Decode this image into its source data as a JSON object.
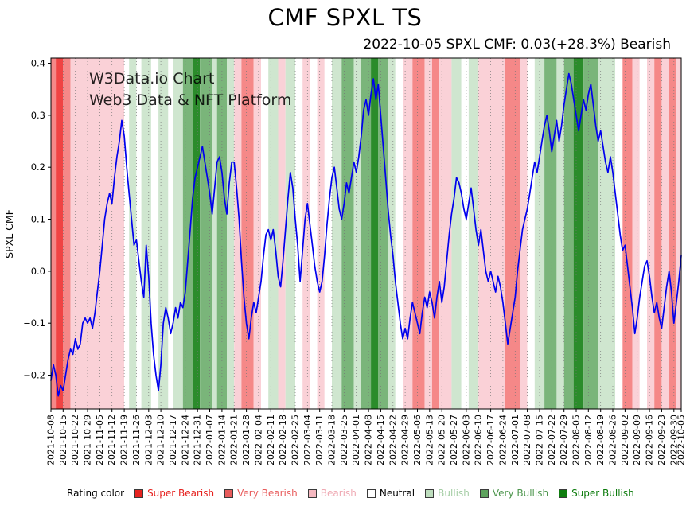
{
  "header": {
    "title": "CMF SPXL TS",
    "subtitle": "2022-10-05 SPXL CMF: 0.03(+28.3%) Bearish"
  },
  "watermark": {
    "line1": "W3Data.io Chart",
    "line2": "Web3 Data & NFT Platform",
    "color1": "#b5b5b5",
    "color2": "#9dbf9d"
  },
  "legend": {
    "title": "Rating color",
    "items": [
      {
        "key": "super-bearish",
        "label": "Super Bearish",
        "swatch": "#e62320",
        "text": "#e62320"
      },
      {
        "key": "very-bearish",
        "label": "Very Bearish",
        "swatch": "#e85b5b",
        "text": "#e85b5b"
      },
      {
        "key": "bearish",
        "label": "Bearish",
        "swatch": "#f5b8c0",
        "text": "#efa9b3"
      },
      {
        "key": "neutral",
        "label": "Neutral",
        "swatch": "#ffffff",
        "text": "#000000"
      },
      {
        "key": "bullish",
        "label": "Bullish",
        "swatch": "#bedebe",
        "text": "#a4cda4"
      },
      {
        "key": "very-bullish",
        "label": "Very Bullish",
        "swatch": "#5ea35e",
        "text": "#4e964e"
      },
      {
        "key": "super-bullish",
        "label": "Super Bullish",
        "swatch": "#0f7d0f",
        "text": "#0a7a0a"
      }
    ]
  },
  "chart_data": {
    "type": "line",
    "title": "CMF SPXL TS",
    "subtitle": "2022-10-05 SPXL CMF: 0.03(+28.3%) Bearish",
    "xlabel": "",
    "ylabel": "SPXL CMF",
    "ylim": [
      -0.265,
      0.41
    ],
    "xlim": [
      0,
      258
    ],
    "grid": "weekly dotted vertical lines",
    "legend_position": "bottom",
    "line_color": "#0000ee",
    "yticks": [
      -0.2,
      -0.1,
      0.0,
      0.1,
      0.2,
      0.3,
      0.4
    ],
    "ytick_labels": [
      "−0.2",
      "−0.1",
      "0.0",
      "0.1",
      "0.2",
      "0.3",
      "0.4"
    ],
    "xtick_positions": [
      0,
      5,
      10,
      15,
      20,
      25,
      30,
      35,
      40,
      45,
      50,
      55,
      60,
      65,
      70,
      75,
      80,
      85,
      90,
      95,
      100,
      105,
      110,
      115,
      120,
      125,
      130,
      135,
      140,
      145,
      150,
      155,
      160,
      165,
      170,
      175,
      180,
      185,
      190,
      195,
      200,
      205,
      210,
      215,
      220,
      225,
      230,
      235,
      240,
      245,
      250,
      255,
      258
    ],
    "xtick_labels": [
      "2021-10-08",
      "2021-10-15",
      "2021-10-22",
      "2021-10-29",
      "2021-11-05",
      "2021-11-12",
      "2021-11-19",
      "2021-11-26",
      "2021-12-03",
      "2021-12-10",
      "2021-12-17",
      "2021-12-24",
      "2021-12-31",
      "2022-01-07",
      "2022-01-14",
      "2022-01-21",
      "2022-01-28",
      "2022-02-04",
      "2022-02-11",
      "2022-02-18",
      "2022-02-25",
      "2022-03-04",
      "2022-03-11",
      "2022-03-18",
      "2022-03-25",
      "2022-04-01",
      "2022-04-08",
      "2022-04-15",
      "2022-04-22",
      "2022-04-29",
      "2022-05-06",
      "2022-05-13",
      "2022-05-20",
      "2022-05-27",
      "2022-06-03",
      "2022-06-10",
      "2022-06-17",
      "2022-06-24",
      "2022-07-01",
      "2022-07-08",
      "2022-07-15",
      "2022-07-22",
      "2022-07-29",
      "2022-08-05",
      "2022-08-12",
      "2022-08-19",
      "2022-08-26",
      "2022-09-02",
      "2022-09-09",
      "2022-09-16",
      "2022-09-23",
      "2022-09-30",
      "2022-10-05"
    ],
    "series": [
      {
        "name": "SPXL CMF",
        "x_unit": "trading-day index from 2021-10-08 (weekly ticks every 5 days)",
        "last_value": 0.03,
        "values": [
          -0.21,
          -0.18,
          -0.2,
          -0.24,
          -0.22,
          -0.23,
          -0.2,
          -0.17,
          -0.15,
          -0.16,
          -0.13,
          -0.15,
          -0.14,
          -0.1,
          -0.09,
          -0.1,
          -0.09,
          -0.11,
          -0.08,
          -0.04,
          0.0,
          0.05,
          0.1,
          0.13,
          0.15,
          0.13,
          0.18,
          0.22,
          0.25,
          0.29,
          0.26,
          0.2,
          0.15,
          0.1,
          0.05,
          0.06,
          0.02,
          -0.02,
          -0.05,
          0.05,
          -0.01,
          -0.1,
          -0.16,
          -0.2,
          -0.23,
          -0.18,
          -0.1,
          -0.07,
          -0.09,
          -0.12,
          -0.1,
          -0.07,
          -0.09,
          -0.06,
          -0.07,
          -0.04,
          0.02,
          0.08,
          0.14,
          0.18,
          0.2,
          0.22,
          0.24,
          0.21,
          0.18,
          0.15,
          0.11,
          0.16,
          0.21,
          0.22,
          0.19,
          0.14,
          0.11,
          0.17,
          0.21,
          0.21,
          0.16,
          0.1,
          0.02,
          -0.05,
          -0.1,
          -0.13,
          -0.09,
          -0.06,
          -0.08,
          -0.05,
          -0.02,
          0.03,
          0.07,
          0.08,
          0.06,
          0.08,
          0.04,
          -0.01,
          -0.03,
          0.02,
          0.08,
          0.14,
          0.19,
          0.16,
          0.1,
          0.05,
          -0.02,
          0.04,
          0.1,
          0.13,
          0.09,
          0.05,
          0.01,
          -0.02,
          -0.04,
          -0.02,
          0.03,
          0.09,
          0.14,
          0.18,
          0.2,
          0.16,
          0.12,
          0.1,
          0.13,
          0.17,
          0.15,
          0.18,
          0.21,
          0.19,
          0.22,
          0.26,
          0.31,
          0.33,
          0.3,
          0.34,
          0.37,
          0.33,
          0.36,
          0.3,
          0.24,
          0.18,
          0.12,
          0.07,
          0.03,
          -0.02,
          -0.06,
          -0.1,
          -0.13,
          -0.11,
          -0.13,
          -0.09,
          -0.06,
          -0.08,
          -0.1,
          -0.12,
          -0.08,
          -0.05,
          -0.07,
          -0.04,
          -0.06,
          -0.09,
          -0.05,
          -0.02,
          -0.06,
          -0.03,
          0.02,
          0.07,
          0.11,
          0.14,
          0.18,
          0.17,
          0.15,
          0.12,
          0.1,
          0.13,
          0.16,
          0.12,
          0.08,
          0.05,
          0.08,
          0.04,
          0.0,
          -0.02,
          0.0,
          -0.02,
          -0.04,
          -0.01,
          -0.03,
          -0.06,
          -0.1,
          -0.14,
          -0.11,
          -0.08,
          -0.05,
          0.0,
          0.04,
          0.08,
          0.1,
          0.12,
          0.15,
          0.18,
          0.21,
          0.19,
          0.22,
          0.25,
          0.28,
          0.3,
          0.27,
          0.23,
          0.26,
          0.29,
          0.25,
          0.28,
          0.32,
          0.35,
          0.38,
          0.36,
          0.33,
          0.3,
          0.27,
          0.3,
          0.33,
          0.31,
          0.34,
          0.36,
          0.32,
          0.28,
          0.25,
          0.27,
          0.24,
          0.21,
          0.19,
          0.22,
          0.19,
          0.15,
          0.11,
          0.07,
          0.04,
          0.05,
          0.01,
          -0.03,
          -0.07,
          -0.12,
          -0.09,
          -0.05,
          -0.02,
          0.01,
          0.02,
          -0.01,
          -0.05,
          -0.08,
          -0.06,
          -0.09,
          -0.11,
          -0.07,
          -0.03,
          0.0,
          -0.04,
          -0.1,
          -0.06,
          -0.02,
          0.03
        ]
      }
    ],
    "band_colors": {
      "super_bearish": "#f04343",
      "very_bearish": "#f58888",
      "bearish": "#fad1d7",
      "neutral": "#ffffff",
      "bullish": "#cfe6cf",
      "very_bullish": "#7ab57a",
      "super_bullish": "#2b8c2b"
    },
    "bands": [
      [
        0,
        2,
        "very_bearish"
      ],
      [
        2,
        5,
        "super_bearish"
      ],
      [
        5,
        8,
        "very_bearish"
      ],
      [
        8,
        30,
        "bearish"
      ],
      [
        30,
        32,
        "neutral"
      ],
      [
        32,
        35,
        "bullish"
      ],
      [
        35,
        37,
        "neutral"
      ],
      [
        37,
        41,
        "bullish"
      ],
      [
        41,
        44,
        "neutral"
      ],
      [
        44,
        48,
        "bullish"
      ],
      [
        48,
        50,
        "neutral"
      ],
      [
        50,
        54,
        "bullish"
      ],
      [
        54,
        58,
        "very_bullish"
      ],
      [
        58,
        61,
        "super_bullish"
      ],
      [
        61,
        66,
        "very_bullish"
      ],
      [
        66,
        68,
        "bullish"
      ],
      [
        68,
        72,
        "very_bullish"
      ],
      [
        72,
        75,
        "bullish"
      ],
      [
        75,
        78,
        "bearish"
      ],
      [
        78,
        83,
        "very_bearish"
      ],
      [
        83,
        86,
        "bearish"
      ],
      [
        86,
        89,
        "neutral"
      ],
      [
        89,
        93,
        "bullish"
      ],
      [
        93,
        96,
        "bearish"
      ],
      [
        96,
        100,
        "bullish"
      ],
      [
        100,
        103,
        "neutral"
      ],
      [
        103,
        106,
        "bearish"
      ],
      [
        106,
        109,
        "neutral"
      ],
      [
        109,
        112,
        "bearish"
      ],
      [
        112,
        115,
        "neutral"
      ],
      [
        115,
        119,
        "bullish"
      ],
      [
        119,
        124,
        "very_bullish"
      ],
      [
        124,
        127,
        "bullish"
      ],
      [
        127,
        131,
        "very_bullish"
      ],
      [
        131,
        134,
        "super_bullish"
      ],
      [
        134,
        138,
        "very_bullish"
      ],
      [
        138,
        141,
        "bullish"
      ],
      [
        141,
        144,
        "neutral"
      ],
      [
        144,
        148,
        "bearish"
      ],
      [
        148,
        153,
        "very_bearish"
      ],
      [
        153,
        156,
        "bearish"
      ],
      [
        156,
        159,
        "very_bearish"
      ],
      [
        159,
        164,
        "bearish"
      ],
      [
        164,
        168,
        "bullish"
      ],
      [
        168,
        171,
        "neutral"
      ],
      [
        171,
        175,
        "bullish"
      ],
      [
        175,
        186,
        "bearish"
      ],
      [
        186,
        192,
        "very_bearish"
      ],
      [
        192,
        195,
        "bearish"
      ],
      [
        195,
        198,
        "neutral"
      ],
      [
        198,
        202,
        "bullish"
      ],
      [
        202,
        207,
        "very_bullish"
      ],
      [
        207,
        210,
        "bullish"
      ],
      [
        210,
        214,
        "very_bullish"
      ],
      [
        214,
        218,
        "super_bullish"
      ],
      [
        218,
        224,
        "very_bullish"
      ],
      [
        224,
        231,
        "bullish"
      ],
      [
        231,
        234,
        "neutral"
      ],
      [
        234,
        238,
        "very_bearish"
      ],
      [
        238,
        241,
        "bearish"
      ],
      [
        241,
        244,
        "neutral"
      ],
      [
        244,
        247,
        "bearish"
      ],
      [
        247,
        250,
        "very_bearish"
      ],
      [
        250,
        253,
        "bearish"
      ],
      [
        253,
        256,
        "very_bearish"
      ],
      [
        256,
        258,
        "bearish"
      ]
    ]
  }
}
